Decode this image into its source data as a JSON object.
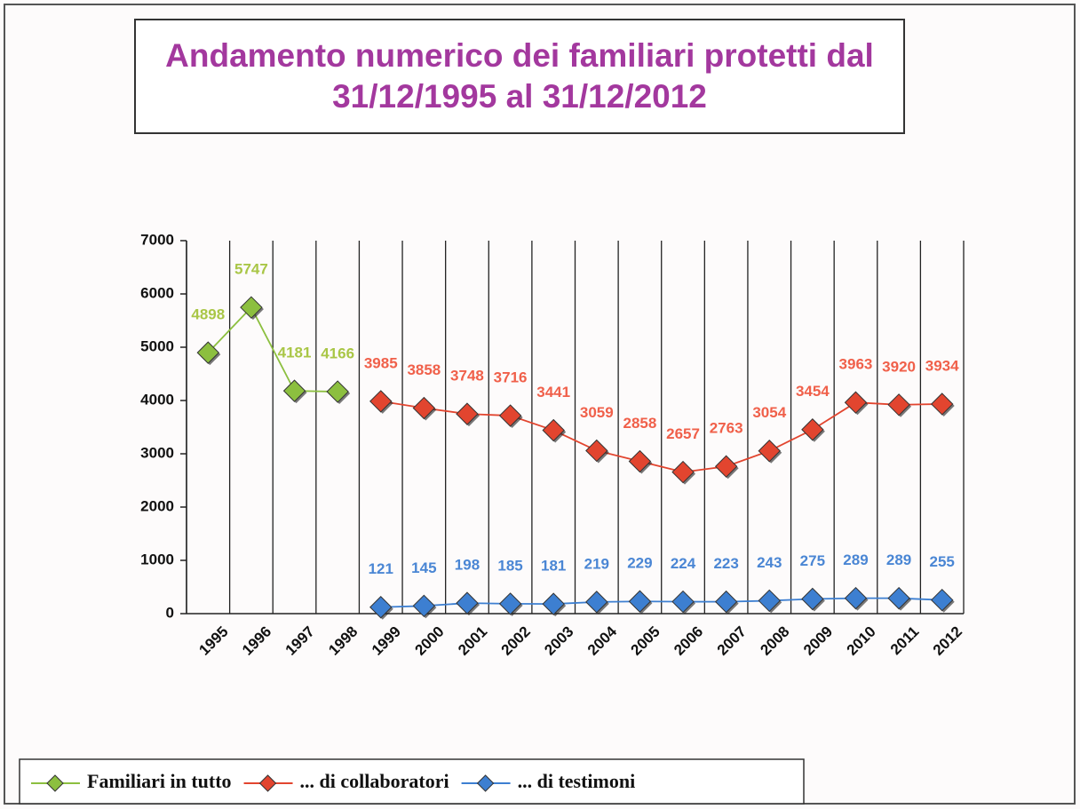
{
  "chart_data": {
    "type": "line",
    "title": "Andamento numerico dei familiari protetti dal 31/12/1995 al 31/12/2012",
    "categories": [
      "1995",
      "1996",
      "1997",
      "1998",
      "1999",
      "2000",
      "2001",
      "2002",
      "2003",
      "2004",
      "2005",
      "2006",
      "2007",
      "2008",
      "2009",
      "2010",
      "2011",
      "2012"
    ],
    "series": [
      {
        "name": "Familiari in tutto",
        "color": "#8cbf3f",
        "label_color": "#a9c646",
        "values": [
          4898,
          5747,
          4181,
          4166,
          null,
          null,
          null,
          null,
          null,
          null,
          null,
          null,
          null,
          null,
          null,
          null,
          null,
          null
        ]
      },
      {
        "name": "... di collaboratori",
        "color": "#e2452f",
        "label_color": "#f0604a",
        "values": [
          null,
          null,
          null,
          null,
          3985,
          3858,
          3748,
          3716,
          3441,
          3059,
          2858,
          2657,
          2763,
          3054,
          3454,
          3963,
          3920,
          3934
        ]
      },
      {
        "name": "... di testimoni",
        "color": "#3d7fd1",
        "label_color": "#4a86d4",
        "values": [
          null,
          null,
          null,
          null,
          121,
          145,
          198,
          185,
          181,
          219,
          229,
          224,
          223,
          243,
          275,
          289,
          289,
          255
        ]
      }
    ],
    "ylim": [
      0,
      7000
    ],
    "yticks": [
      0,
      1000,
      2000,
      3000,
      4000,
      5000,
      6000,
      7000
    ],
    "x_grid": true,
    "legend": "bottom-left"
  }
}
